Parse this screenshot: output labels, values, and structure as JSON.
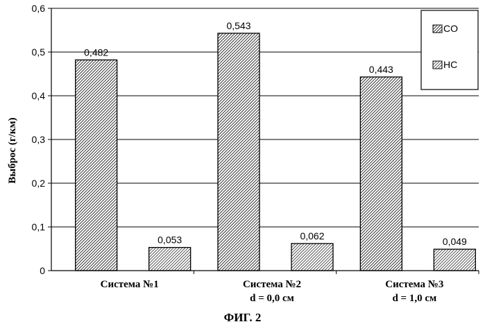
{
  "chart_data": {
    "type": "bar",
    "categories": [
      [
        "Система №1"
      ],
      [
        "Система №2",
        "d = 0,0 см"
      ],
      [
        "Система №3",
        "d = 1,0 см"
      ]
    ],
    "series": [
      {
        "name": "CO",
        "values": [
          0.482,
          0.543,
          0.443
        ],
        "labels": [
          "0,482",
          "0,543",
          "0,443"
        ]
      },
      {
        "name": "HC",
        "values": [
          0.053,
          0.062,
          0.049
        ],
        "labels": [
          "0,053",
          "0,062",
          "0,049"
        ]
      }
    ],
    "ylabel": "Выброс (г/км)",
    "xlabel": "",
    "ylim": [
      0,
      0.6
    ],
    "yticks": [
      0,
      0.1,
      0.2,
      0.3,
      0.4,
      0.5,
      0.6
    ],
    "ytick_labels": [
      "0",
      "0,1",
      "0,2",
      "0,3",
      "0,4",
      "0,5",
      "0,6"
    ],
    "grid": true,
    "legend": "top-right"
  },
  "caption": "ФИГ. 2"
}
